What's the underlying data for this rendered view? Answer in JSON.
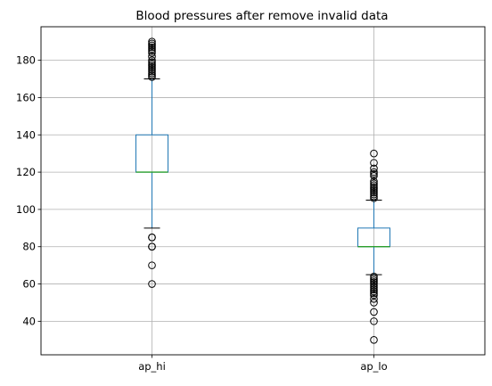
{
  "chart_data": {
    "type": "boxplot",
    "title": "Blood pressures after remove invalid data",
    "categories": [
      "ap_hi",
      "ap_lo"
    ],
    "ylim": [
      22,
      198
    ],
    "yticks": [
      40,
      60,
      80,
      100,
      120,
      140,
      160,
      180
    ],
    "grid": true,
    "box_color": "#1f77b4",
    "median_color": "#2ca02c",
    "series": [
      {
        "name": "ap_hi",
        "q1": 120,
        "median": 120,
        "q3": 140,
        "whisker_low": 90,
        "whisker_high": 170,
        "outliers": [
          60,
          70,
          80,
          80,
          85,
          85,
          171,
          172,
          173,
          174,
          175,
          176,
          177,
          178,
          179,
          180,
          182,
          184,
          185,
          186,
          187,
          188,
          189,
          190
        ]
      },
      {
        "name": "ap_lo",
        "q1": 80,
        "median": 80,
        "q3": 90,
        "whisker_low": 65,
        "whisker_high": 105,
        "outliers": [
          30,
          40,
          45,
          50,
          52,
          54,
          55,
          56,
          57,
          58,
          59,
          60,
          61,
          62,
          63,
          64,
          106,
          107,
          108,
          109,
          110,
          111,
          112,
          113,
          114,
          115,
          118,
          119,
          120,
          122,
          125,
          130
        ]
      }
    ]
  }
}
